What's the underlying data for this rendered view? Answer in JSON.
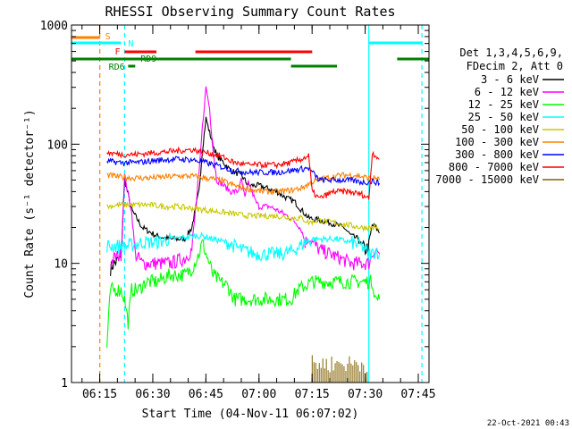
{
  "chart_data": {
    "type": "line",
    "title": "RHESSI Observing Summary Count Rates",
    "xlabel": "Start Time (04-Nov-11 06:07:02)",
    "ylabel": "Count Rate (s⁻¹ detector⁻¹)",
    "x_unit": "minutes after 06:07:02",
    "xlim": [
      0,
      101
    ],
    "ylim": [
      1,
      1000
    ],
    "yscale": "log",
    "xticks": [
      {
        "t": 7.97,
        "label": "06:15"
      },
      {
        "t": 22.97,
        "label": "06:30"
      },
      {
        "t": 37.97,
        "label": "06:45"
      },
      {
        "t": 52.97,
        "label": "07:00"
      },
      {
        "t": 67.97,
        "label": "07:15"
      },
      {
        "t": 82.97,
        "label": "07:30"
      },
      {
        "t": 97.97,
        "label": "07:45"
      }
    ],
    "yticks": [
      {
        "v": 1,
        "label": "1"
      },
      {
        "v": 10,
        "label": "10"
      },
      {
        "v": 100,
        "label": "100"
      },
      {
        "v": 1000,
        "label": "1000"
      }
    ],
    "legend_header": [
      "Det 1,3,4,5,6,9,",
      "FDecim 2, Att 0"
    ],
    "legend_position": "right",
    "timestamp": "22-Oct-2021 00:43",
    "flags": [
      {
        "label": "S",
        "color": "#ff8000",
        "segments": [
          [
            0,
            8
          ]
        ]
      },
      {
        "label": "N",
        "color": "#00ffff",
        "segments": [
          [
            0,
            14
          ],
          [
            84,
            99
          ]
        ]
      },
      {
        "label": "F",
        "color": "#ff0000",
        "segments": [
          [
            15,
            24
          ],
          [
            35,
            68
          ]
        ]
      },
      {
        "label": "RD9",
        "color": "#008000",
        "segments": [
          [
            0,
            62
          ],
          [
            92,
            101
          ]
        ]
      },
      {
        "label": "RD6",
        "color": "#008000",
        "segments": [
          [
            16,
            18
          ],
          [
            62,
            75
          ]
        ]
      }
    ],
    "vlines": [
      {
        "t": 8,
        "color": "#ff8000",
        "dashed": true
      },
      {
        "t": 15,
        "color": "#00ffff",
        "dashed": true
      },
      {
        "t": 84,
        "color": "#00ffff",
        "dashed": false
      },
      {
        "t": 99,
        "color": "#00ffff",
        "dashed": true
      }
    ],
    "series": [
      {
        "name": "3 - 6 keV",
        "color": "#000000",
        "points": [
          [
            11,
            9
          ],
          [
            12,
            10
          ],
          [
            14,
            11
          ],
          [
            15,
            50
          ],
          [
            17,
            28
          ],
          [
            20,
            20
          ],
          [
            24,
            17
          ],
          [
            28,
            16
          ],
          [
            32,
            16
          ],
          [
            34,
            20
          ],
          [
            36,
            40
          ],
          [
            37,
            90
          ],
          [
            38,
            165
          ],
          [
            39,
            125
          ],
          [
            41,
            80
          ],
          [
            43,
            70
          ],
          [
            45,
            60
          ],
          [
            48,
            55
          ],
          [
            50,
            45
          ],
          [
            53,
            45
          ],
          [
            58,
            40
          ],
          [
            61,
            35
          ],
          [
            63,
            33
          ],
          [
            65,
            28
          ],
          [
            67,
            24
          ],
          [
            70,
            23
          ],
          [
            73,
            22
          ],
          [
            77,
            20
          ],
          [
            79,
            17
          ],
          [
            81,
            16
          ],
          [
            82,
            14
          ],
          [
            83,
            13
          ],
          [
            84,
            14
          ],
          [
            85,
            21
          ],
          [
            86,
            20
          ],
          [
            87,
            18
          ]
        ]
      },
      {
        "name": "6 - 12 keV",
        "color": "#ff00ff",
        "points": [
          [
            11,
            10
          ],
          [
            12,
            11
          ],
          [
            14,
            12
          ],
          [
            15,
            55
          ],
          [
            17,
            27
          ],
          [
            18,
            12
          ],
          [
            20,
            10
          ],
          [
            24,
            10
          ],
          [
            28,
            10
          ],
          [
            32,
            11
          ],
          [
            34,
            13
          ],
          [
            36,
            55
          ],
          [
            37,
            140
          ],
          [
            38,
            300
          ],
          [
            39,
            200
          ],
          [
            40,
            90
          ],
          [
            41,
            50
          ],
          [
            43,
            45
          ],
          [
            45,
            40
          ],
          [
            47,
            40
          ],
          [
            48,
            50
          ],
          [
            49,
            35
          ],
          [
            50,
            48
          ],
          [
            51,
            40
          ],
          [
            52,
            33
          ],
          [
            53,
            30
          ],
          [
            56,
            30
          ],
          [
            58,
            28
          ],
          [
            60,
            26
          ],
          [
            62,
            24
          ],
          [
            64,
            21
          ],
          [
            65,
            19
          ],
          [
            66,
            15
          ],
          [
            67,
            16
          ],
          [
            68,
            15
          ],
          [
            70,
            13
          ],
          [
            73,
            12
          ],
          [
            76,
            11
          ],
          [
            79,
            10
          ],
          [
            82,
            10
          ],
          [
            84,
            10
          ],
          [
            85,
            12
          ],
          [
            86,
            13
          ],
          [
            87,
            12
          ]
        ]
      },
      {
        "name": "12 - 25 keV",
        "color": "#00ff00",
        "points": [
          [
            10,
            2
          ],
          [
            11,
            6
          ],
          [
            14,
            6
          ],
          [
            15,
            5
          ],
          [
            16,
            3.2
          ],
          [
            17,
            6
          ],
          [
            19,
            6
          ],
          [
            21,
            7
          ],
          [
            24,
            7
          ],
          [
            28,
            8
          ],
          [
            32,
            8
          ],
          [
            34,
            9
          ],
          [
            36,
            12
          ],
          [
            37,
            15
          ],
          [
            38,
            12
          ],
          [
            40,
            8
          ],
          [
            42,
            7
          ],
          [
            44,
            6.5
          ],
          [
            46,
            5
          ],
          [
            48,
            5
          ],
          [
            51,
            5
          ],
          [
            54,
            5
          ],
          [
            57,
            5
          ],
          [
            60,
            5
          ],
          [
            62,
            5
          ],
          [
            64,
            6
          ],
          [
            66,
            6.5
          ],
          [
            68,
            7
          ],
          [
            70,
            7
          ],
          [
            73,
            7
          ],
          [
            77,
            7
          ],
          [
            80,
            7
          ],
          [
            84,
            7
          ],
          [
            85,
            7
          ],
          [
            86,
            5
          ],
          [
            87,
            5
          ]
        ]
      },
      {
        "name": "25 - 50 keV",
        "color": "#00ffff",
        "points": [
          [
            10,
            14
          ],
          [
            13,
            14
          ],
          [
            16,
            14
          ],
          [
            20,
            15
          ],
          [
            24,
            15
          ],
          [
            28,
            16
          ],
          [
            32,
            16.5
          ],
          [
            35,
            17
          ],
          [
            37,
            17
          ],
          [
            40,
            16
          ],
          [
            44,
            15
          ],
          [
            48,
            13
          ],
          [
            52,
            12
          ],
          [
            56,
            12
          ],
          [
            60,
            12
          ],
          [
            63,
            13
          ],
          [
            66,
            15
          ],
          [
            68,
            16
          ],
          [
            71,
            16
          ],
          [
            75,
            16
          ],
          [
            79,
            15
          ],
          [
            82,
            14
          ],
          [
            84,
            12
          ],
          [
            85,
            12
          ],
          [
            86,
            13
          ],
          [
            87,
            12
          ]
        ]
      },
      {
        "name": "50 - 100 keV",
        "color": "#c8c800",
        "points": [
          [
            10,
            30
          ],
          [
            14,
            31
          ],
          [
            18,
            31
          ],
          [
            22,
            31
          ],
          [
            26,
            30
          ],
          [
            30,
            30
          ],
          [
            34,
            29
          ],
          [
            38,
            28
          ],
          [
            42,
            27
          ],
          [
            46,
            26
          ],
          [
            50,
            25
          ],
          [
            54,
            25
          ],
          [
            58,
            25
          ],
          [
            62,
            24
          ],
          [
            65,
            24
          ],
          [
            67,
            22
          ],
          [
            70,
            23
          ],
          [
            74,
            22
          ],
          [
            78,
            21
          ],
          [
            82,
            20
          ],
          [
            84,
            20
          ],
          [
            85,
            20
          ],
          [
            86,
            20
          ],
          [
            87,
            19
          ]
        ]
      },
      {
        "name": "100 - 300 keV",
        "color": "#ff8000",
        "points": [
          [
            10,
            55
          ],
          [
            14,
            53
          ],
          [
            18,
            52
          ],
          [
            22,
            52
          ],
          [
            26,
            53
          ],
          [
            30,
            54
          ],
          [
            34,
            54
          ],
          [
            38,
            52
          ],
          [
            42,
            50
          ],
          [
            46,
            45
          ],
          [
            50,
            42
          ],
          [
            54,
            40
          ],
          [
            58,
            40
          ],
          [
            62,
            41
          ],
          [
            65,
            43
          ],
          [
            68,
            48
          ],
          [
            72,
            52
          ],
          [
            76,
            55
          ],
          [
            80,
            55
          ],
          [
            84,
            52
          ],
          [
            85,
            52
          ],
          [
            86,
            52
          ],
          [
            87,
            50
          ]
        ]
      },
      {
        "name": "300 - 800 keV",
        "color": "#0000ff",
        "points": [
          [
            10,
            72
          ],
          [
            14,
            70
          ],
          [
            18,
            70
          ],
          [
            22,
            72
          ],
          [
            26,
            74
          ],
          [
            30,
            75
          ],
          [
            34,
            74
          ],
          [
            38,
            70
          ],
          [
            42,
            65
          ],
          [
            46,
            60
          ],
          [
            50,
            58
          ],
          [
            54,
            58
          ],
          [
            58,
            58
          ],
          [
            62,
            60
          ],
          [
            65,
            62
          ],
          [
            67,
            63
          ],
          [
            70,
            50
          ],
          [
            74,
            50
          ],
          [
            78,
            50
          ],
          [
            82,
            48
          ],
          [
            84,
            48
          ],
          [
            85,
            49
          ],
          [
            86,
            48
          ],
          [
            87,
            47
          ]
        ]
      },
      {
        "name": "800 - 7000 keV",
        "color": "#ff0000",
        "points": [
          [
            10,
            85
          ],
          [
            14,
            82
          ],
          [
            18,
            82
          ],
          [
            22,
            84
          ],
          [
            26,
            86
          ],
          [
            30,
            88
          ],
          [
            34,
            90
          ],
          [
            38,
            85
          ],
          [
            42,
            80
          ],
          [
            46,
            70
          ],
          [
            50,
            67
          ],
          [
            54,
            67
          ],
          [
            58,
            67
          ],
          [
            62,
            70
          ],
          [
            65,
            75
          ],
          [
            67,
            80
          ],
          [
            68,
            40
          ],
          [
            70,
            35
          ],
          [
            74,
            40
          ],
          [
            78,
            40
          ],
          [
            82,
            38
          ],
          [
            84,
            35
          ],
          [
            85,
            85
          ],
          [
            86,
            80
          ],
          [
            87,
            75
          ]
        ]
      },
      {
        "name": "7000 - 15000 keV",
        "color": "#806000",
        "points": []
      }
    ]
  }
}
